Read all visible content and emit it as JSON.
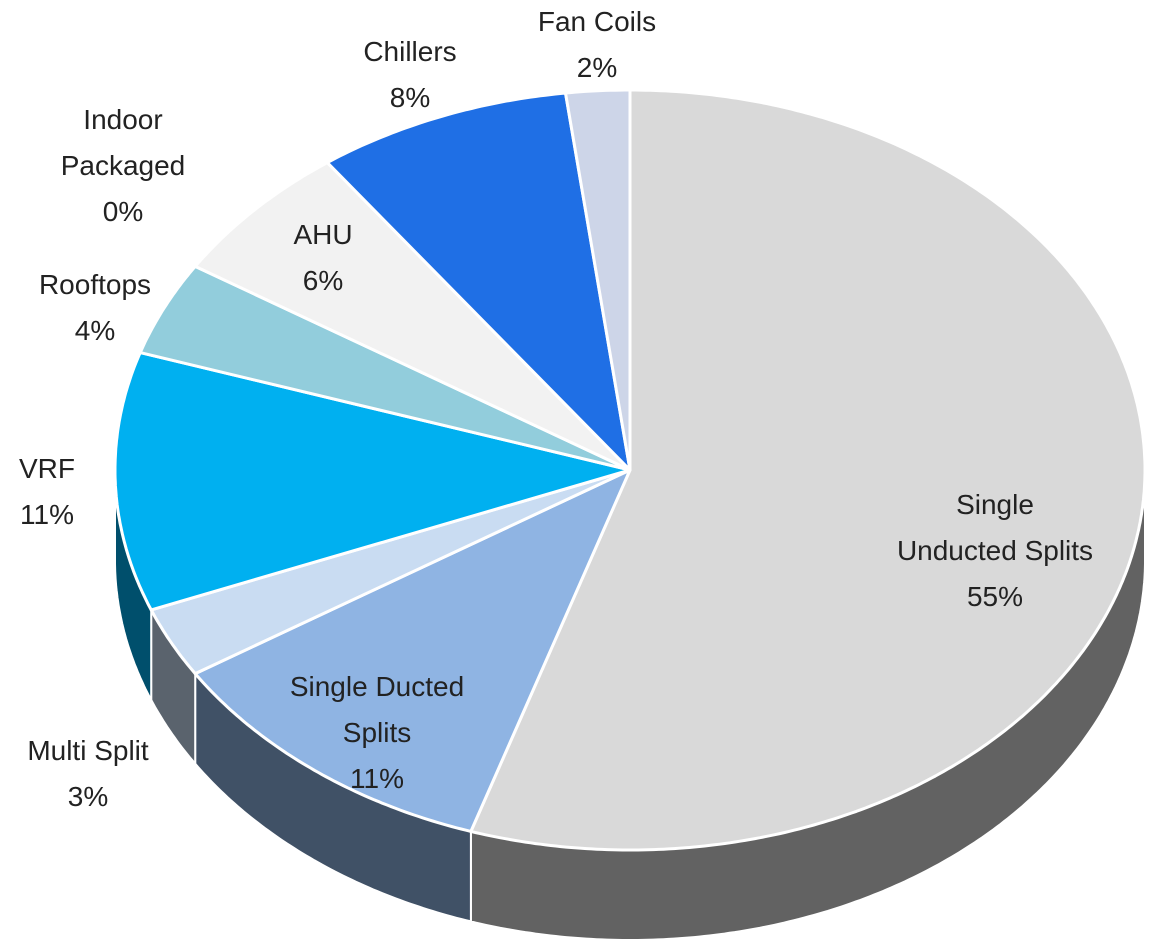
{
  "chart_data": {
    "type": "pie",
    "categories": [
      "Single Unducted Splits",
      "Single Ducted Splits",
      "Multi Split",
      "VRF",
      "Rooftops",
      "AHU",
      "Indoor Packaged",
      "Chillers",
      "Fan Coils"
    ],
    "values": [
      55,
      11,
      3,
      11,
      4,
      6,
      0,
      8,
      2
    ],
    "value_labels": [
      "55%",
      "11%",
      "3%",
      "11%",
      "4%",
      "6%",
      "0%",
      "8%",
      "2%"
    ],
    "colors": [
      "#d9d9d9",
      "#8fb4e3",
      "#c9dcf2",
      "#00b0f0",
      "#92cddc",
      "#f2f2f2",
      "#a6b6d0",
      "#1f6fe5",
      "#cdd5e8"
    ],
    "three_d": true
  }
}
